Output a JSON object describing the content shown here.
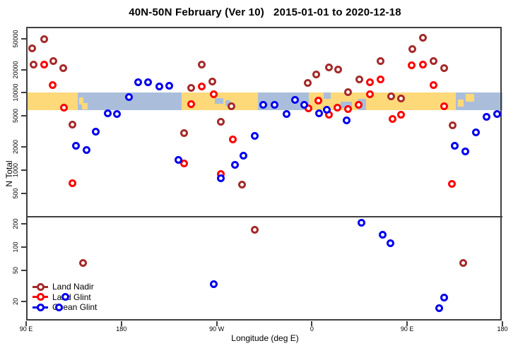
{
  "title": "40N-50N February (Ver 10)   2015-01-01 to 2020-12-18",
  "chart_data": {
    "type": "scatter",
    "title": "40N-50N February (Ver 10)   2015-01-01 to 2020-12-18",
    "xlabel": "Longitude (deg E)",
    "ylabel": "N Total",
    "x_axis": {
      "description": "longitude axis starting at 90E wrapping eastward through 180, 90W, 0, 90E to 180",
      "tick_labels": [
        "90 E",
        "180",
        "90 W",
        "0",
        "90 E",
        "180"
      ],
      "tick_positions_deg_from_left": [
        0,
        90,
        180,
        270,
        360,
        450
      ],
      "range_deg_from_left": [
        0,
        450
      ]
    },
    "y_axis": {
      "scale": "log",
      "tick_labels": [
        "20",
        "50",
        "100",
        "200",
        "500",
        "1000",
        "2000",
        "5000",
        "10000",
        "20000",
        "50000"
      ],
      "tick_values": [
        20,
        50,
        100,
        200,
        500,
        1000,
        2000,
        5000,
        10000,
        20000,
        50000
      ],
      "top_value": 50000
    },
    "reference_line_n": 250,
    "map_band": {
      "comment": "40N-50N world-map strip drawn across the plot between N=6000 and N=10000",
      "n_range": [
        6000,
        10000
      ],
      "ocean_color": "#AABEDC",
      "land_color": "#FED97A",
      "land_segments_deg": [
        [
          0,
          49
        ],
        [
          147,
          219
        ],
        [
          267,
          406
        ]
      ],
      "details": [
        {
          "kind": "land",
          "t": [
            50,
            54
          ],
          "v": [
            0.25,
            0.7
          ]
        },
        {
          "kind": "land",
          "t": [
            53,
            58
          ],
          "v": [
            0.6,
            0.95
          ]
        },
        {
          "kind": "water",
          "t": [
            178,
            186
          ],
          "v": [
            0.3,
            0.65
          ]
        },
        {
          "kind": "water",
          "t": [
            188,
            193
          ],
          "v": [
            0.45,
            0.75
          ]
        },
        {
          "kind": "water",
          "t": [
            281,
            288
          ],
          "v": [
            0.0,
            0.35
          ]
        },
        {
          "kind": "water",
          "t": [
            297,
            308
          ],
          "v": [
            0.5,
            0.9
          ]
        },
        {
          "kind": "water",
          "t": [
            314,
            321
          ],
          "v": [
            0.35,
            1.0
          ]
        },
        {
          "kind": "land",
          "t": [
            408,
            413
          ],
          "v": [
            0.4,
            0.8
          ]
        },
        {
          "kind": "land",
          "t": [
            415,
            423
          ],
          "v": [
            0.05,
            0.5
          ]
        }
      ]
    },
    "series": [
      {
        "name": "Land Nadir",
        "color": "#A52A2A",
        "points": [
          [
            17,
            50000
          ],
          [
            6,
            38000
          ],
          [
            7,
            23000
          ],
          [
            26,
            25500
          ],
          [
            35,
            20700
          ],
          [
            44,
            3840
          ],
          [
            166,
            23400
          ],
          [
            176,
            14100
          ],
          [
            156,
            11500
          ],
          [
            194,
            6630
          ],
          [
            184,
            4260
          ],
          [
            149,
            3040
          ],
          [
            204,
            654
          ],
          [
            216,
            167
          ],
          [
            54,
            62
          ],
          [
            266,
            13300
          ],
          [
            274,
            17100
          ],
          [
            286,
            21500
          ],
          [
            295,
            20200
          ],
          [
            315,
            14800
          ],
          [
            304,
            10300
          ],
          [
            335,
            25500
          ],
          [
            345,
            9080
          ],
          [
            354,
            8530
          ],
          [
            375,
            51100
          ],
          [
            365,
            37200
          ],
          [
            385,
            25500
          ],
          [
            395,
            20700
          ],
          [
            403,
            3760
          ],
          [
            413,
            62
          ]
        ]
      },
      {
        "name": "Land Glint",
        "color": "#FF0000",
        "points": [
          [
            17,
            23000
          ],
          [
            25,
            12700
          ],
          [
            36,
            6490
          ],
          [
            44,
            682
          ],
          [
            166,
            12200
          ],
          [
            177,
            9680
          ],
          [
            156,
            7210
          ],
          [
            195,
            2470
          ],
          [
            149,
            1230
          ],
          [
            184,
            879
          ],
          [
            267,
            6350
          ],
          [
            276,
            7850
          ],
          [
            286,
            5150
          ],
          [
            294,
            6490
          ],
          [
            304,
            6220
          ],
          [
            314,
            6920
          ],
          [
            325,
            9680
          ],
          [
            325,
            13600
          ],
          [
            335,
            14800
          ],
          [
            364,
            22500
          ],
          [
            375,
            23000
          ],
          [
            385,
            12700
          ],
          [
            395,
            6630
          ],
          [
            354,
            5150
          ],
          [
            346,
            4630
          ],
          [
            402,
            668
          ]
        ]
      },
      {
        "name": "Ocean Glint",
        "color": "#0000EE",
        "points": [
          [
            106,
            13600
          ],
          [
            115,
            13600
          ],
          [
            126,
            12000
          ],
          [
            135,
            12450
          ],
          [
            97,
            8730
          ],
          [
            77,
            5380
          ],
          [
            86,
            5270
          ],
          [
            66,
            3110
          ],
          [
            47,
            2080
          ],
          [
            57,
            1800
          ],
          [
            144,
            1340
          ],
          [
            177,
            33
          ],
          [
            224,
            7060
          ],
          [
            235,
            7060
          ],
          [
            246,
            5370
          ],
          [
            254,
            8180
          ],
          [
            263,
            6920
          ],
          [
            277,
            5480
          ],
          [
            284,
            5970
          ],
          [
            303,
            4360
          ],
          [
            216,
            2740
          ],
          [
            205,
            1550
          ],
          [
            197,
            1180
          ],
          [
            184,
            775
          ],
          [
            317,
            210
          ],
          [
            337,
            144
          ],
          [
            344,
            114
          ],
          [
            395,
            22.5
          ],
          [
            390,
            16.4
          ],
          [
            405,
            2040
          ],
          [
            415,
            1760
          ],
          [
            425,
            3050
          ],
          [
            435,
            4840
          ],
          [
            445,
            5260
          ],
          [
            37,
            23
          ],
          [
            31,
            16.8
          ]
        ]
      }
    ],
    "legend_position": "bottom-left"
  }
}
